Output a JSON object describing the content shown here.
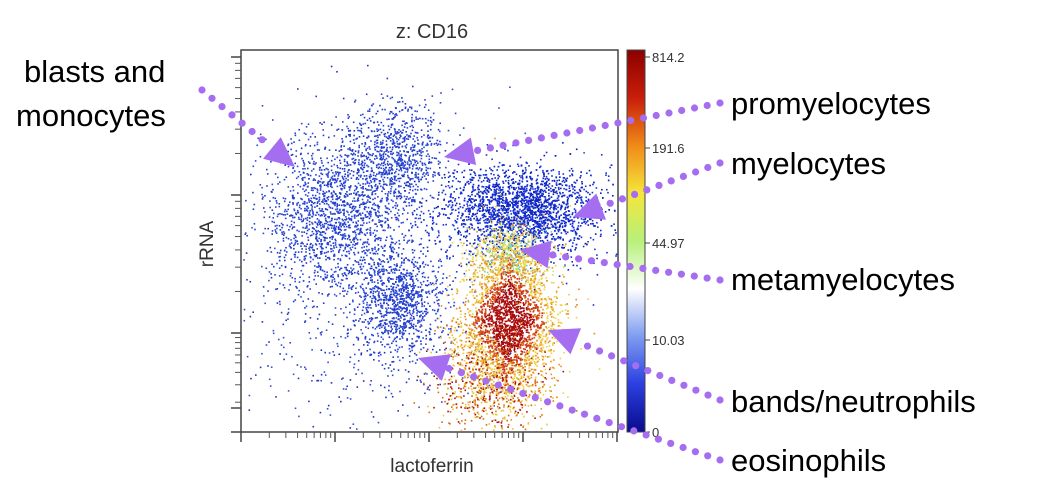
{
  "chart_data": {
    "type": "scatter",
    "title": "z: CD16",
    "xlabel": "lactoferrin",
    "ylabel": "rRNA",
    "colorbar": {
      "ticks": [
        "814.2",
        "191.6",
        "44.97",
        "10.03",
        "0"
      ],
      "stops": [
        "#8b0000",
        "#c81e0a",
        "#f08a18",
        "#f5e63a",
        "#b7f07a",
        "#ffffff",
        "#7e9cf0",
        "#2b3fe0",
        "#0a0a8c"
      ]
    },
    "populations": [
      {
        "name": "blasts and monocytes",
        "color": "#1f3cc8"
      },
      {
        "name": "promyelocytes",
        "color": "#1f3cc8"
      },
      {
        "name": "myelocytes",
        "color": "#1530d8"
      },
      {
        "name": "metamyelocytes",
        "color": "#7ad0c0"
      },
      {
        "name": "bands/neutrophils",
        "color": "#b01010"
      },
      {
        "name": "eosinophils",
        "color": "#1f3cc8"
      }
    ]
  },
  "annotations": [
    {
      "id": "blasts",
      "lines": [
        "blasts and",
        "monocytes"
      ]
    },
    {
      "id": "promyelocytes",
      "lines": [
        "promyelocytes"
      ]
    },
    {
      "id": "myelocytes",
      "lines": [
        "myelocytes"
      ]
    },
    {
      "id": "metamyelocytes",
      "lines": [
        "metamyelocytes"
      ]
    },
    {
      "id": "bands",
      "lines": [
        "bands/neutrophils"
      ]
    },
    {
      "id": "eosinophils",
      "lines": [
        "eosinophils"
      ]
    }
  ],
  "arrow_color": "#a56ef0"
}
